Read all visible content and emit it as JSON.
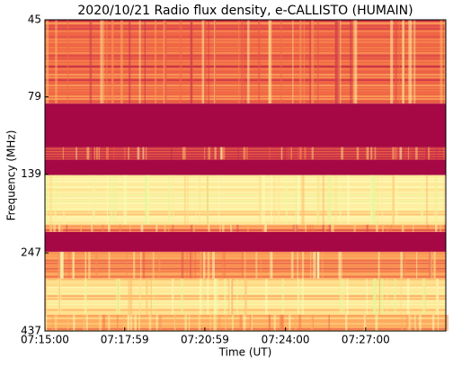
{
  "chart_data": {
    "type": "spectrogram",
    "title": "2020/10/21  Radio flux density, e-CALLISTO (HUMAIN)",
    "x_label": "Time (UT)",
    "y_label": "Frequency (MHz)",
    "xlim": [
      26100,
      27000
    ],
    "xticks": [
      {
        "value": 26100,
        "label": "07:15:00"
      },
      {
        "value": 26279,
        "label": "07:17:59"
      },
      {
        "value": 26459,
        "label": "07:20:59"
      },
      {
        "value": 26640,
        "label": "07:24:00"
      },
      {
        "value": 26820,
        "label": "07:27:00"
      }
    ],
    "ylim": [
      437,
      45
    ],
    "y_log": true,
    "yticks": [
      45,
      79,
      139,
      247,
      437
    ],
    "colormap": [
      "#9e0142",
      "#d53e4f",
      "#f46d43",
      "#fdae61",
      "#fee08b",
      "#ffffbf",
      "#e6f598"
    ],
    "bands": {
      "low": [
        45,
        83,
        114,
        125,
        140,
        201,
        212,
        245,
        298,
        388
      ],
      "high": [
        83,
        114,
        125,
        140,
        201,
        212,
        245,
        298,
        388,
        437
      ],
      "level": [
        0.3,
        0.02,
        0.28,
        0.02,
        0.72,
        0.4,
        0.02,
        0.45,
        0.68,
        0.5
      ]
    }
  }
}
